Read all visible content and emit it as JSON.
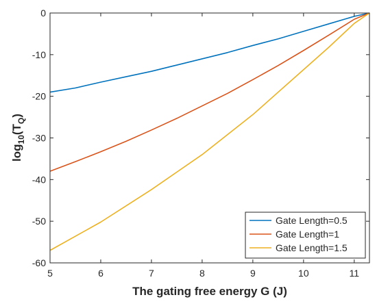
{
  "chart_data": {
    "type": "line",
    "xlabel": "The gating free energy G (J)",
    "ylabel_main": "log",
    "ylabel_sub": "10",
    "ylabel_paren_open": "(T",
    "ylabel_q": "Q",
    "ylabel_paren_close": ")",
    "xlim": [
      5,
      11.3
    ],
    "ylim": [
      -60,
      0
    ],
    "xticks": [
      5,
      6,
      7,
      8,
      9,
      10,
      11
    ],
    "yticks": [
      0,
      -10,
      -20,
      -30,
      -40,
      -50,
      -60
    ],
    "grid": false,
    "legend_position": "bottom-right",
    "series": [
      {
        "name": "Gate Length=0.5",
        "color": "#0072BD",
        "x": [
          5,
          5.5,
          6,
          6.5,
          7,
          7.5,
          8,
          8.5,
          9,
          9.5,
          10,
          10.5,
          11,
          11.3
        ],
        "y": [
          -19,
          -18,
          -16.6,
          -15.3,
          -14,
          -12.5,
          -11,
          -9.5,
          -7.8,
          -6.2,
          -4.4,
          -2.6,
          -0.8,
          0
        ]
      },
      {
        "name": "Gate Length=1",
        "color": "#D95319",
        "x": [
          5,
          5.5,
          6,
          6.5,
          7,
          7.5,
          8,
          8.5,
          9,
          9.5,
          10,
          10.5,
          11,
          11.3
        ],
        "y": [
          -38,
          -35.7,
          -33.3,
          -30.8,
          -28.1,
          -25.3,
          -22.3,
          -19.3,
          -16,
          -12.6,
          -9,
          -5.3,
          -1.5,
          0
        ]
      },
      {
        "name": "Gate Length=1.5",
        "color": "#EDB120",
        "x": [
          5,
          5.5,
          6,
          6.5,
          7,
          7.5,
          8,
          8.5,
          9,
          9.5,
          10,
          10.5,
          11,
          11.3
        ],
        "y": [
          -57,
          -53.6,
          -50.2,
          -46.3,
          -42.4,
          -38.2,
          -34,
          -29.2,
          -24.4,
          -19,
          -13.6,
          -8.2,
          -2.5,
          0
        ]
      }
    ]
  }
}
